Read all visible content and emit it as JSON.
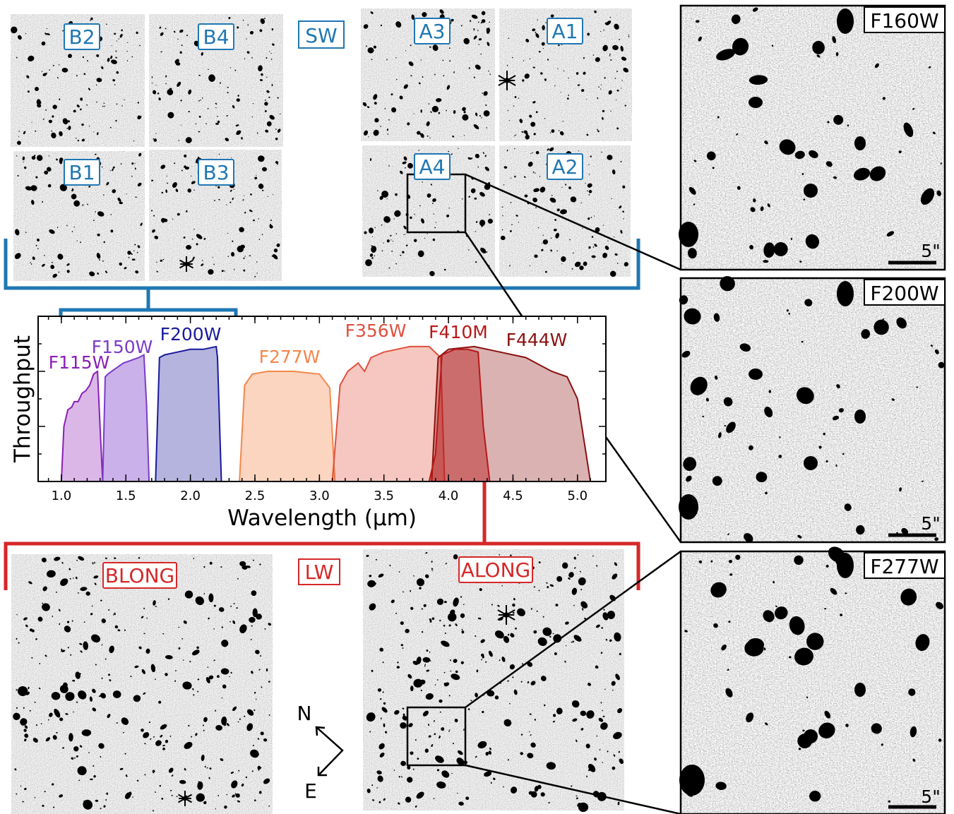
{
  "colors": {
    "sw": "#1f77b4",
    "lw": "#d62728",
    "F115W": "#8b1fb5",
    "F150W": "#7b3cc8",
    "F200W": "#1a1a9c",
    "F277W": "#f4874b",
    "F356W": "#e0503c",
    "F410M": "#b81818",
    "F444W": "#8b1010"
  },
  "sw": {
    "label": "SW",
    "detectors": [
      {
        "id": "B2",
        "label": "B2"
      },
      {
        "id": "B4",
        "label": "B4"
      },
      {
        "id": "B1",
        "label": "B1"
      },
      {
        "id": "B3",
        "label": "B3"
      },
      {
        "id": "A3",
        "label": "A3"
      },
      {
        "id": "A1",
        "label": "A1"
      },
      {
        "id": "A4",
        "label": "A4"
      },
      {
        "id": "A2",
        "label": "A2"
      }
    ]
  },
  "lw": {
    "label": "LW",
    "detectors": [
      {
        "id": "BLONG",
        "label": "BLONG"
      },
      {
        "id": "ALONG",
        "label": "ALONG"
      }
    ]
  },
  "compass": {
    "north": "N",
    "east": "E"
  },
  "cutouts": [
    {
      "filter": "F160W",
      "scale": "5\""
    },
    {
      "filter": "F200W",
      "scale": "5\""
    },
    {
      "filter": "F277W",
      "scale": "5\""
    }
  ],
  "chart_data": {
    "type": "area",
    "xlabel": "Wavelength (μm)",
    "ylabel": "Throughput",
    "xlim": [
      0.82,
      5.22
    ],
    "x_ticks": [
      "1.0",
      "1.5",
      "2.0",
      "2.5",
      "3.0",
      "3.5",
      "4.0",
      "4.5",
      "5.0"
    ],
    "y_ticks_labeled": false,
    "ylim": [
      0,
      0.6
    ],
    "series": [
      {
        "name": "F115W",
        "x": [
          1.0,
          1.02,
          1.05,
          1.08,
          1.1,
          1.13,
          1.16,
          1.19,
          1.22,
          1.25,
          1.28,
          1.3,
          1.32
        ],
        "y": [
          0.0,
          0.2,
          0.26,
          0.27,
          0.29,
          0.29,
          0.32,
          0.33,
          0.35,
          0.39,
          0.4,
          0.2,
          0.0
        ]
      },
      {
        "name": "F150W",
        "x": [
          1.32,
          1.34,
          1.36,
          1.42,
          1.48,
          1.54,
          1.6,
          1.64,
          1.66,
          1.68
        ],
        "y": [
          0.0,
          0.38,
          0.39,
          0.41,
          0.43,
          0.44,
          0.45,
          0.46,
          0.28,
          0.0
        ]
      },
      {
        "name": "F200W",
        "x": [
          1.73,
          1.76,
          1.8,
          1.9,
          2.0,
          2.1,
          2.2,
          2.21,
          2.24
        ],
        "y": [
          0.0,
          0.45,
          0.46,
          0.47,
          0.48,
          0.48,
          0.49,
          0.45,
          0.0
        ]
      },
      {
        "name": "F277W",
        "x": [
          2.38,
          2.42,
          2.48,
          2.6,
          2.8,
          3.0,
          3.08,
          3.12
        ],
        "y": [
          0.0,
          0.35,
          0.39,
          0.4,
          0.4,
          0.39,
          0.34,
          0.0
        ]
      },
      {
        "name": "F356W",
        "x": [
          3.1,
          3.16,
          3.22,
          3.3,
          3.35,
          3.4,
          3.5,
          3.6,
          3.7,
          3.85,
          3.94,
          3.97
        ],
        "y": [
          0.0,
          0.35,
          0.4,
          0.43,
          0.4,
          0.45,
          0.47,
          0.48,
          0.49,
          0.49,
          0.45,
          0.0
        ]
      },
      {
        "name": "F410M",
        "x": [
          3.85,
          3.9,
          3.95,
          4.05,
          4.15,
          4.23,
          4.27,
          4.32
        ],
        "y": [
          0.0,
          0.1,
          0.46,
          0.48,
          0.48,
          0.47,
          0.2,
          0.0
        ]
      },
      {
        "name": "F444W",
        "x": [
          3.87,
          3.92,
          4.0,
          4.2,
          4.4,
          4.6,
          4.8,
          4.92,
          5.0,
          5.1
        ],
        "y": [
          0.0,
          0.45,
          0.48,
          0.49,
          0.47,
          0.45,
          0.4,
          0.38,
          0.3,
          0.0
        ]
      }
    ]
  }
}
